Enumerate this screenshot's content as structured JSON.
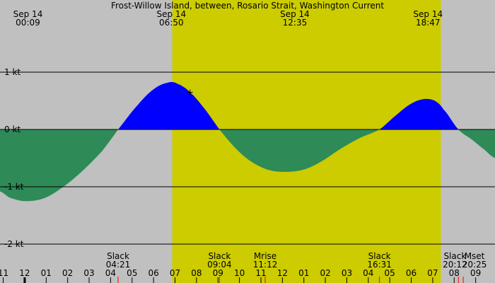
{
  "chart_data": {
    "type": "area",
    "title": "Frost-Willow Island, between, Rosario Strait, Washington Current",
    "xlabel": "",
    "ylabel": "",
    "x_unit": "hours",
    "x_range": [
      10.85,
      33.9
    ],
    "ylim": [
      -2.1,
      2.0
    ],
    "y_ticks": [
      {
        "value": 1,
        "label": "1 kt"
      },
      {
        "value": 0,
        "label": "0 kt"
      },
      {
        "value": -1,
        "label": "-1 kt"
      },
      {
        "value": -2,
        "label": "-2 kt"
      }
    ],
    "daylight": {
      "start": 18.87,
      "end": 31.38
    },
    "top_labels": [
      {
        "date": "Sep 14",
        "time": "00:09",
        "x": 12.15
      },
      {
        "date": "Sep 14",
        "time": "06:50",
        "x": 18.83
      },
      {
        "date": "Sep 14",
        "time": "12:35",
        "x": 24.58
      },
      {
        "date": "Sep 14",
        "time": "18:47",
        "x": 30.78
      }
    ],
    "events": [
      {
        "name": "Slack",
        "time": "04:21",
        "x": 16.35
      },
      {
        "name": "Slack",
        "time": "09:04",
        "x": 21.07
      },
      {
        "name": "Mrise",
        "time": "11:12",
        "x": 23.2
      },
      {
        "name": "Slack",
        "time": "16:31",
        "x": 28.52
      },
      {
        "name": "Slack",
        "time": "20:12",
        "x": 32.2
      },
      {
        "name": "Mset",
        "time": "20:25",
        "x": 32.42
      }
    ],
    "hour_ticks": [
      "11",
      "12",
      "01",
      "02",
      "03",
      "04",
      "05",
      "06",
      "07",
      "08",
      "09",
      "10",
      "11",
      "12",
      "01",
      "02",
      "03",
      "04",
      "05",
      "06",
      "07",
      "08",
      "09"
    ],
    "series": [
      {
        "x": [
          10.85,
          11.3,
          12.0,
          12.9,
          13.8,
          14.7,
          15.6,
          16.35,
          17.2,
          18.0,
          18.7,
          19.1,
          19.7,
          20.4,
          21.07,
          21.8,
          22.5,
          23.3,
          24.1,
          25.0,
          25.8,
          26.7,
          27.6,
          28.52,
          29.3,
          30.0,
          30.6,
          31.1,
          31.5,
          32.2,
          32.8,
          33.4,
          33.9
        ],
        "y": [
          -1.08,
          -1.19,
          -1.25,
          -1.2,
          -1.0,
          -0.72,
          -0.38,
          0.0,
          0.4,
          0.7,
          0.82,
          0.8,
          0.65,
          0.35,
          0.0,
          -0.32,
          -0.55,
          -0.7,
          -0.74,
          -0.7,
          -0.56,
          -0.34,
          -0.15,
          0.0,
          0.25,
          0.45,
          0.53,
          0.5,
          0.35,
          0.0,
          -0.17,
          -0.35,
          -0.5
        ],
        "color_positive": "#0000ff",
        "color_negative": "#2e8b57"
      }
    ],
    "marker": {
      "x": 19.7,
      "y": 0.66,
      "symbol": "+"
    },
    "colors": {
      "night": "#c0c0c0",
      "day": "#cccc00",
      "flood": "#0000ff",
      "ebb": "#2e8b57",
      "event_tick": "#ff0000"
    }
  }
}
